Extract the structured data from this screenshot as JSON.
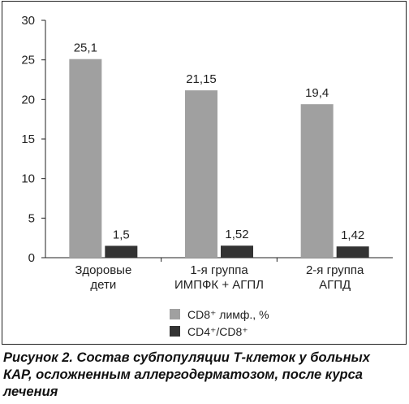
{
  "chart_data": {
    "type": "bar",
    "categories": [
      [
        "Здоровые",
        "дети"
      ],
      [
        "1-я группа",
        "ИМПФК + АГПЛ"
      ],
      [
        "2-я группа",
        "АГПД"
      ]
    ],
    "series": [
      {
        "name": "CD8⁺ лимф., %",
        "values": [
          25.1,
          21.15,
          19.4
        ],
        "labels": [
          "25,1",
          "21,15",
          "19,4"
        ],
        "color": "#a0a0a0"
      },
      {
        "name": "CD4⁺/CD8⁺",
        "values": [
          1.5,
          1.52,
          1.42
        ],
        "labels": [
          "1,5",
          "1,52",
          "1,42"
        ],
        "color": "#333333"
      }
    ],
    "ylim": [
      0,
      30
    ],
    "yticks": [
      0,
      5,
      10,
      15,
      20,
      25,
      30
    ],
    "legend_position": "bottom",
    "grid": false
  },
  "caption": {
    "line1": "Рисунок 2. Состав субпопуляции Т-клеток у больных",
    "line2": "КАР, осложненным аллергодерматозом, после курса",
    "line3": "лечения"
  }
}
